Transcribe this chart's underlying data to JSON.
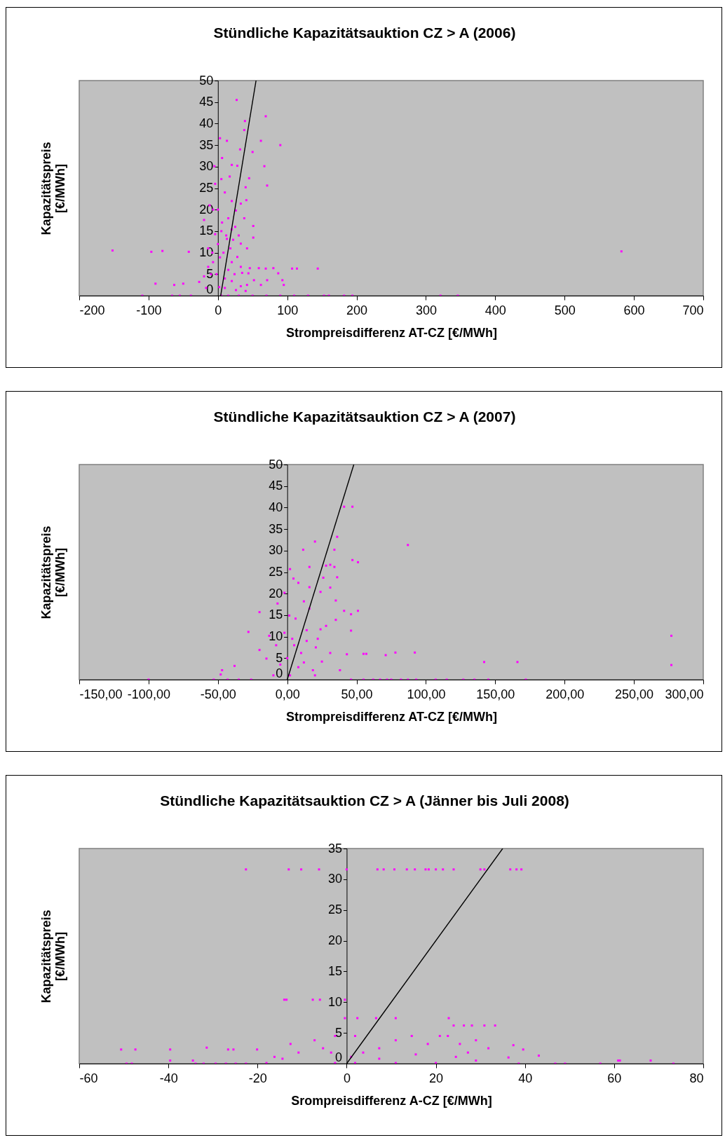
{
  "chart_data": [
    {
      "type": "scatter",
      "title": "Stündliche Kapazitätsauktion CZ > A (2006)",
      "xlabel": "Strompreisdifferenz AT-CZ [€/MWh]",
      "ylabel": "Kapazitätspreis [€/MWh]",
      "xlim": [
        -200,
        700
      ],
      "ylim": [
        0,
        50
      ],
      "xticks": [
        -200,
        -100,
        0,
        100,
        200,
        300,
        400,
        500,
        600,
        700
      ],
      "yticks": [
        0,
        5,
        10,
        15,
        20,
        25,
        30,
        35,
        40,
        45,
        50
      ],
      "grid": false,
      "series": [
        {
          "type": "scatter",
          "marker": "square",
          "color": "#ff00ff",
          "x": [
            -152,
            -96,
            -80,
            -90,
            -63,
            -50,
            -109,
            -66,
            -55,
            -42,
            -39,
            27,
            69,
            39,
            38,
            3,
            13,
            62,
            90,
            50,
            32,
            6,
            -5,
            20,
            28,
            67,
            71,
            40,
            45,
            5,
            -4,
            17,
            41,
            -12,
            -7,
            20,
            33,
            26,
            38,
            -20,
            51,
            51,
            33,
            42,
            -14,
            6,
            20,
            -4,
            13,
            3,
            -7,
            20,
            33,
            35,
            46,
            59,
            69,
            80,
            107,
            114,
            144,
            87,
            44,
            52,
            62,
            71,
            93,
            95,
            42,
            33,
            -27,
            -20,
            -14,
            -10,
            -17,
            10,
            20,
            26,
            40,
            5,
            15,
            30,
            50,
            70,
            90,
            110,
            130,
            153,
            160,
            182,
            194,
            321,
            346,
            582,
            0,
            10,
            15,
            25,
            0,
            8,
            18,
            28,
            -2,
            10,
            15,
            2,
            12,
            22,
            30,
            -8,
            5,
            24
          ],
          "values": [
            10.5,
            10.2,
            10.4,
            2.8,
            2.5,
            2.8,
            0,
            0,
            0,
            10.2,
            0,
            45.5,
            41.7,
            40.6,
            38.5,
            36.6,
            36,
            36,
            35,
            33.4,
            34,
            32,
            30.1,
            30.4,
            30.2,
            30.1,
            25.6,
            25.2,
            27.3,
            27.1,
            26,
            27.7,
            22.2,
            21,
            20,
            22,
            21.4,
            19.8,
            18,
            17.6,
            16.2,
            13.5,
            12.1,
            11,
            11,
            17,
            15.4,
            14.3,
            13.2,
            8.9,
            7.8,
            7.8,
            6.7,
            5.3,
            6.4,
            6.4,
            6.3,
            6.4,
            6.3,
            6.3,
            6.3,
            5.2,
            5.2,
            3.6,
            2.5,
            3.6,
            3.6,
            2.5,
            2.5,
            2.2,
            3.2,
            4.5,
            6.7,
            5,
            1.8,
            1.8,
            3.4,
            1.3,
            1.1,
            0,
            0,
            0,
            0,
            0,
            0,
            0,
            0,
            0,
            0,
            0,
            0,
            0,
            0,
            10.3,
            20,
            24,
            18,
            16,
            12,
            10,
            11,
            9,
            5,
            4,
            6,
            2,
            14,
            13,
            14,
            10,
            15,
            5
          ]
        },
        {
          "type": "line",
          "color": "#000000",
          "x": [
            4,
            55
          ],
          "values": [
            0,
            50
          ]
        }
      ]
    },
    {
      "type": "scatter",
      "title": "Stündliche Kapazitätsauktion CZ > A (2007)",
      "xlabel": "Strompreisdifferenz AT-CZ [€/MWh]",
      "ylabel": "Kapazitätspreis [€/MWh]",
      "xlim": [
        -150,
        300
      ],
      "ylim": [
        0,
        50
      ],
      "xticks": [
        {
          "value": -150,
          "label": "-150,00"
        },
        {
          "value": -100,
          "label": "-100,00"
        },
        {
          "value": -50,
          "label": "-50,00"
        },
        {
          "value": 0,
          "label": "0,00"
        },
        {
          "value": 50,
          "label": "50,00"
        },
        {
          "value": 100,
          "label": "100,00"
        },
        {
          "value": 150,
          "label": "150,00"
        },
        {
          "value": 200,
          "label": "200,00"
        },
        {
          "value": 250,
          "label": "250,00"
        },
        {
          "value": 300,
          "label": "300,00"
        }
      ],
      "yticks": [
        0,
        5,
        10,
        15,
        20,
        25,
        30,
        35,
        40,
        45,
        50
      ],
      "grid": false,
      "series": [
        {
          "type": "scatter",
          "marker": "square",
          "color": "#ff00ff",
          "x": [
            -100,
            41,
            47,
            87,
            36,
            20,
            11.5,
            34,
            47,
            51,
            31,
            34,
            28,
            2,
            16,
            36,
            26,
            4.5,
            8,
            16,
            31,
            -2,
            24,
            35,
            -7,
            -20,
            51,
            41,
            46,
            46,
            -28,
            24,
            28,
            35,
            55,
            57,
            71,
            78,
            92,
            43,
            142,
            166,
            -2,
            -13,
            -20,
            -15,
            -38,
            -47,
            -48,
            -53,
            -43,
            -35,
            -26,
            3.6,
            10,
            14,
            8,
            18.5,
            -5,
            25,
            31,
            38,
            20.6,
            6,
            12,
            16,
            1.5,
            46,
            55,
            62,
            67,
            72,
            75,
            82,
            87,
            93,
            107,
            115,
            127,
            135,
            145,
            172,
            277,
            277,
            0,
            5,
            -8,
            12,
            20,
            -10,
            2,
            14,
            22
          ],
          "values": [
            0,
            40.2,
            40.2,
            31.3,
            33.2,
            32.1,
            30.2,
            30.2,
            27.8,
            27.3,
            26.7,
            26.2,
            26.5,
            25.7,
            26.2,
            23.8,
            23.7,
            23.5,
            22.5,
            21.5,
            21.4,
            20.2,
            20.4,
            18.4,
            17.7,
            15.7,
            16,
            16,
            15.2,
            11.4,
            11.1,
            11.7,
            12.5,
            13.9,
            6,
            6,
            5.7,
            6.3,
            6.3,
            5.9,
            4.1,
            4.1,
            10.9,
            10.2,
            6.9,
            4.9,
            3.2,
            2.2,
            1.2,
            0,
            0,
            0,
            0,
            9.5,
            6.2,
            11.5,
            2.9,
            2.2,
            3.5,
            4.2,
            6.2,
            2.2,
            7.5,
            14.2,
            18.2,
            16.5,
            14.9,
            0,
            0,
            0,
            0,
            0,
            0,
            0,
            0,
            0,
            0,
            0,
            0,
            0,
            0,
            0,
            10.2,
            3.4,
            5,
            8,
            8,
            4,
            1,
            1,
            1,
            9,
            9.5
          ]
        },
        {
          "type": "line",
          "color": "#000000",
          "x": [
            0,
            48
          ],
          "values": [
            0,
            50
          ]
        }
      ]
    },
    {
      "type": "scatter",
      "title": "Stündliche Kapazitätsauktion CZ > A  (Jänner bis Juli 2008)",
      "xlabel": "Srompreisdifferenz A-CZ [€/MWh]",
      "ylabel": "Kapazitätspreis [€/MWh]",
      "xlim": [
        -60,
        80
      ],
      "ylim": [
        0,
        35
      ],
      "xticks": [
        -60,
        -40,
        -20,
        0,
        20,
        40,
        60,
        80
      ],
      "yticks": [
        0,
        5,
        10,
        15,
        20,
        25,
        30,
        35
      ],
      "grid": false,
      "series": [
        {
          "type": "scatter",
          "marker": "square",
          "color": "#ff00ff",
          "x": [
            -22.6,
            -13,
            -10.2,
            -6.2,
            0,
            6.9,
            8.3,
            10.7,
            13.5,
            15.3,
            17.7,
            18.4,
            20,
            21.6,
            24,
            30,
            30.9,
            36.7,
            38.1,
            39.2,
            -14,
            -13.5,
            -7.6,
            -6,
            -0.4,
            -0.4,
            2.4,
            6.6,
            11,
            22.9,
            24,
            26.3,
            28.1,
            30.9,
            33.3,
            -50.6,
            -47.4,
            -39.6,
            -26.6,
            -25.4,
            -20.1,
            39.6,
            -31.4,
            -39.6,
            -34.5,
            60.9,
            61.3,
            68.2,
            -49.4,
            -48.2,
            -33.9,
            -32.1,
            -29.4,
            -27.1,
            -24.9,
            -22.6,
            38.6,
            46.8,
            49,
            56.9,
            73.3,
            43.1,
            37.4,
            36.3,
            -7.2,
            -5.3,
            -2.6,
            1.9,
            3.7,
            7.3,
            11,
            14.6,
            18.2,
            20.9,
            22.7,
            25.4,
            29,
            31.8,
            29,
            -10.8,
            -14.4,
            -18,
            -16.2,
            -12.6,
            -2.6,
            1.9,
            11,
            20,
            -3.5,
            1,
            7.3,
            15.5,
            24.5,
            27.2
          ],
          "values": [
            31.6,
            31.6,
            31.6,
            31.6,
            31.6,
            31.6,
            31.6,
            31.6,
            31.6,
            31.6,
            31.6,
            31.6,
            31.6,
            31.6,
            31.6,
            31.6,
            31.6,
            31.6,
            31.6,
            31.6,
            10.4,
            10.4,
            10.4,
            10.4,
            10.4,
            7.4,
            7.4,
            7.4,
            7.4,
            7.4,
            6.2,
            6.2,
            6.2,
            6.2,
            6.2,
            2.3,
            2.3,
            2.3,
            2.3,
            2.3,
            2.3,
            2.3,
            2.6,
            0.5,
            0.5,
            0.5,
            0.5,
            0.5,
            0,
            0,
            0,
            0,
            0,
            0,
            0,
            0,
            0,
            0,
            0,
            0,
            0,
            1.3,
            3,
            1,
            3.8,
            2.5,
            4.5,
            4.5,
            1.8,
            2.5,
            3.8,
            4.5,
            3.2,
            4.5,
            4.5,
            3.2,
            3.8,
            2.5,
            0.5,
            1.8,
            0.8,
            0.1,
            1.1,
            3.2,
            0.1,
            0.1,
            0.1,
            0.1,
            1.8,
            1.1,
            0.8,
            1.5,
            1.1,
            1.8
          ]
        },
        {
          "type": "line",
          "color": "#000000",
          "x": [
            0,
            35
          ],
          "values": [
            0,
            35
          ]
        }
      ]
    }
  ]
}
